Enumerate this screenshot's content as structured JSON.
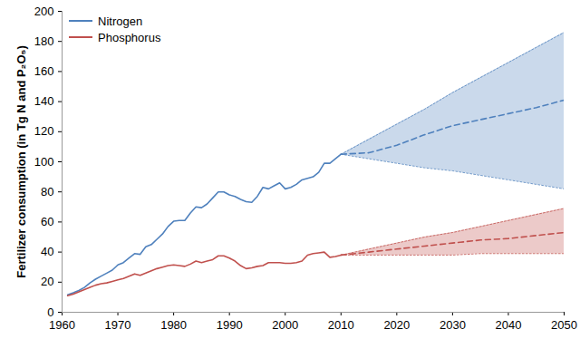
{
  "chart_data": {
    "type": "line",
    "ylabel": "Fertilizer consumption (in Tg N and P₂O₅)",
    "x": [
      1961,
      1962,
      1963,
      1964,
      1965,
      1966,
      1967,
      1968,
      1969,
      1970,
      1971,
      1972,
      1973,
      1974,
      1975,
      1976,
      1977,
      1978,
      1979,
      1980,
      1981,
      1982,
      1983,
      1984,
      1985,
      1986,
      1987,
      1988,
      1989,
      1990,
      1991,
      1992,
      1993,
      1994,
      1995,
      1996,
      1997,
      1998,
      1999,
      2000,
      2001,
      2002,
      2003,
      2004,
      2005,
      2006,
      2007,
      2008,
      2009,
      2010,
      2015,
      2020,
      2025,
      2030,
      2035,
      2040,
      2045,
      2050
    ],
    "series": [
      {
        "name": "Nitrogen",
        "color": "#4f81bd",
        "values": [
          11.6,
          13,
          14.5,
          16.5,
          19.5,
          22,
          24,
          26,
          28,
          31.5,
          33,
          36,
          39,
          38.5,
          43.5,
          45,
          48.5,
          52,
          57,
          60.5,
          61,
          61,
          66,
          70,
          69.5,
          72,
          76,
          80,
          80,
          78,
          77,
          75,
          73.5,
          73,
          77,
          83,
          82,
          84,
          86,
          82,
          83,
          85,
          88,
          89,
          90,
          93,
          99,
          99,
          102,
          105,
          null,
          null,
          null,
          null,
          null,
          null,
          null,
          null
        ],
        "projected": [
          null,
          null,
          null,
          null,
          null,
          null,
          null,
          null,
          null,
          null,
          null,
          null,
          null,
          null,
          null,
          null,
          null,
          null,
          null,
          null,
          null,
          null,
          null,
          null,
          null,
          null,
          null,
          null,
          null,
          null,
          null,
          null,
          null,
          null,
          null,
          null,
          null,
          null,
          null,
          null,
          null,
          null,
          null,
          null,
          null,
          null,
          null,
          null,
          null,
          105,
          106,
          111,
          118,
          124,
          128,
          132,
          136,
          141
        ],
        "lower": [
          null,
          null,
          null,
          null,
          null,
          null,
          null,
          null,
          null,
          null,
          null,
          null,
          null,
          null,
          null,
          null,
          null,
          null,
          null,
          null,
          null,
          null,
          null,
          null,
          null,
          null,
          null,
          null,
          null,
          null,
          null,
          null,
          null,
          null,
          null,
          null,
          null,
          null,
          null,
          null,
          null,
          null,
          null,
          null,
          null,
          null,
          null,
          null,
          null,
          105,
          102,
          99,
          96,
          94,
          91,
          88,
          85,
          82
        ],
        "upper": [
          null,
          null,
          null,
          null,
          null,
          null,
          null,
          null,
          null,
          null,
          null,
          null,
          null,
          null,
          null,
          null,
          null,
          null,
          null,
          null,
          null,
          null,
          null,
          null,
          null,
          null,
          null,
          null,
          null,
          null,
          null,
          null,
          null,
          null,
          null,
          null,
          null,
          null,
          null,
          null,
          null,
          null,
          null,
          null,
          null,
          null,
          null,
          null,
          null,
          105,
          115,
          125,
          135,
          146,
          156,
          166,
          176,
          186
        ]
      },
      {
        "name": "Phosphorus",
        "color": "#c0504d",
        "values": [
          11,
          12,
          13.5,
          15,
          16.5,
          18,
          19,
          19.5,
          20.5,
          21.5,
          22.5,
          24,
          25.5,
          24.5,
          26,
          27.5,
          29,
          30,
          31,
          31.5,
          31,
          30.5,
          32,
          34,
          33,
          34,
          35,
          37.5,
          37.5,
          36,
          34,
          31,
          29,
          29.5,
          30.5,
          31,
          33,
          33,
          33,
          32.5,
          32.5,
          33,
          34,
          38,
          39,
          39.5,
          40,
          36.5,
          37,
          38,
          null,
          null,
          null,
          null,
          null,
          null,
          null,
          null
        ],
        "projected": [
          null,
          null,
          null,
          null,
          null,
          null,
          null,
          null,
          null,
          null,
          null,
          null,
          null,
          null,
          null,
          null,
          null,
          null,
          null,
          null,
          null,
          null,
          null,
          null,
          null,
          null,
          null,
          null,
          null,
          null,
          null,
          null,
          null,
          null,
          null,
          null,
          null,
          null,
          null,
          null,
          null,
          null,
          null,
          null,
          null,
          null,
          null,
          null,
          null,
          38,
          40,
          42,
          44,
          46,
          48,
          49,
          51,
          53
        ],
        "lower": [
          null,
          null,
          null,
          null,
          null,
          null,
          null,
          null,
          null,
          null,
          null,
          null,
          null,
          null,
          null,
          null,
          null,
          null,
          null,
          null,
          null,
          null,
          null,
          null,
          null,
          null,
          null,
          null,
          null,
          null,
          null,
          null,
          null,
          null,
          null,
          null,
          null,
          null,
          null,
          null,
          null,
          null,
          null,
          null,
          null,
          null,
          null,
          null,
          null,
          38,
          38,
          38,
          38,
          38,
          39,
          39,
          39,
          39
        ],
        "upper": [
          null,
          null,
          null,
          null,
          null,
          null,
          null,
          null,
          null,
          null,
          null,
          null,
          null,
          null,
          null,
          null,
          null,
          null,
          null,
          null,
          null,
          null,
          null,
          null,
          null,
          null,
          null,
          null,
          null,
          null,
          null,
          null,
          null,
          null,
          null,
          null,
          null,
          null,
          null,
          null,
          null,
          null,
          null,
          null,
          null,
          null,
          null,
          null,
          null,
          38,
          42,
          46,
          50,
          53,
          57,
          61,
          65,
          69
        ]
      }
    ],
    "xlim": [
      1960,
      2050
    ],
    "xticks": [
      1960,
      1970,
      1980,
      1990,
      2000,
      2010,
      2020,
      2030,
      2040,
      2050
    ],
    "ylim": [
      0,
      200
    ],
    "yticks": [
      0,
      20,
      40,
      60,
      80,
      100,
      120,
      140,
      160,
      180,
      200
    ],
    "grid": false,
    "legend": "upper left"
  }
}
